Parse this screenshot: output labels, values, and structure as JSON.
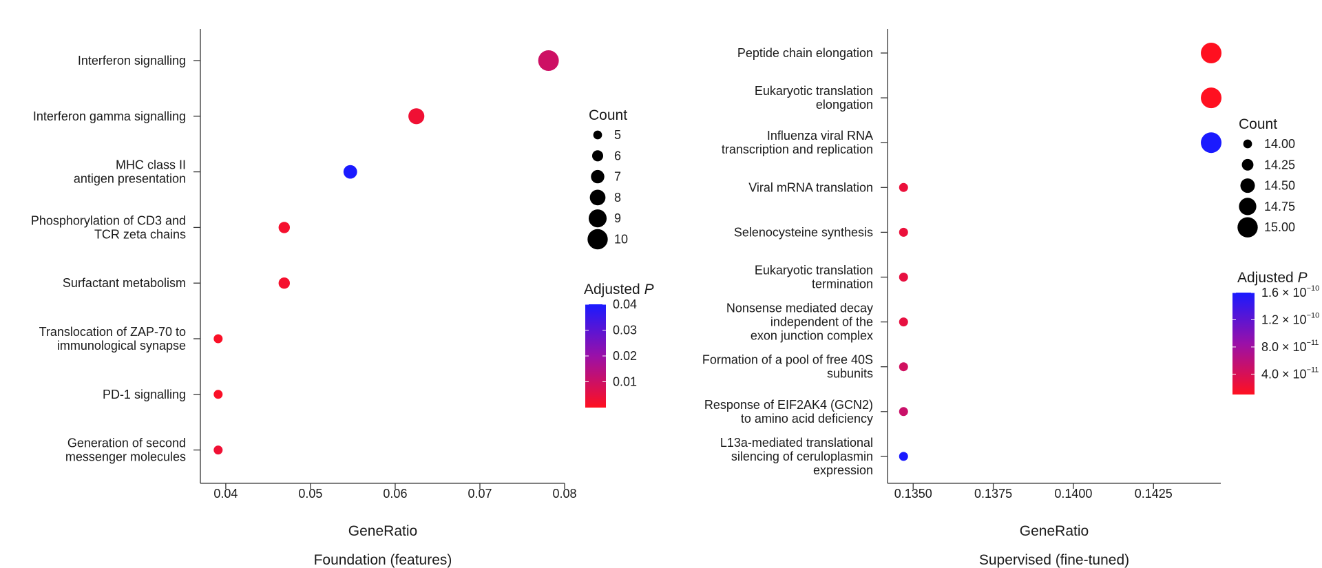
{
  "chart_data": [
    {
      "type": "scatter",
      "subtitle": "Foundation (features)",
      "xlabel": "GeneRatio",
      "xlim": [
        0.037,
        0.08
      ],
      "xticks": [
        "0.04",
        "0.05",
        "0.06",
        "0.07",
        "0.08"
      ],
      "xtick_values": [
        0.04,
        0.05,
        0.06,
        0.07,
        0.08
      ],
      "categories": [
        [
          "Interferon signalling"
        ],
        [
          "Interferon gamma signalling"
        ],
        [
          "MHC class II",
          "antigen presentation"
        ],
        [
          "Phosphorylation of CD3 and",
          "TCR zeta chains"
        ],
        [
          "Surfactant metabolism"
        ],
        [
          "Translocation of ZAP-70 to",
          "immunological synapse"
        ],
        [
          "PD-1 signalling"
        ],
        [
          "Generation of second",
          "messenger molecules"
        ]
      ],
      "points": [
        {
          "gene_ratio": 0.0781,
          "count": 10,
          "p_adj": 0.01
        },
        {
          "gene_ratio": 0.0625,
          "count": 8,
          "p_adj": 0.003
        },
        {
          "gene_ratio": 0.0547,
          "count": 7,
          "p_adj": 0.04
        },
        {
          "gene_ratio": 0.0469,
          "count": 6,
          "p_adj": 0.002
        },
        {
          "gene_ratio": 0.0469,
          "count": 6,
          "p_adj": 0.002
        },
        {
          "gene_ratio": 0.0391,
          "count": 5,
          "p_adj": 0.001
        },
        {
          "gene_ratio": 0.0391,
          "count": 5,
          "p_adj": 0.001
        },
        {
          "gene_ratio": 0.0391,
          "count": 5,
          "p_adj": 0.003
        }
      ],
      "size_legend": {
        "title": "Count",
        "labels": [
          "5",
          "6",
          "7",
          "8",
          "9",
          "10"
        ],
        "values": [
          5,
          6,
          7,
          8,
          9,
          10
        ]
      },
      "color_legend": {
        "title": "Adjusted ",
        "title_italic": "P",
        "range": [
          0.0,
          0.04
        ],
        "ticks": [
          {
            "value": 0.04,
            "mant": "0.04",
            "exp": ""
          },
          {
            "value": 0.03,
            "mant": "0.03",
            "exp": ""
          },
          {
            "value": 0.02,
            "mant": "0.02",
            "exp": ""
          },
          {
            "value": 0.01,
            "mant": "0.01",
            "exp": ""
          }
        ]
      }
    },
    {
      "type": "scatter",
      "subtitle": "Supervised (fine-tuned)",
      "xlabel": "GeneRatio",
      "xlim": [
        0.1342,
        0.1446
      ],
      "xticks": [
        "0.1350",
        "0.1375",
        "0.1400",
        "0.1425"
      ],
      "xtick_values": [
        0.135,
        0.1375,
        0.14,
        0.1425
      ],
      "categories": [
        [
          "Peptide chain elongation"
        ],
        [
          "Eukaryotic translation",
          "elongation"
        ],
        [
          "Influenza viral RNA",
          "transcription and replication"
        ],
        [
          "Viral mRNA translation"
        ],
        [
          "Selenocysteine synthesis"
        ],
        [
          "Eukaryotic translation",
          "termination"
        ],
        [
          "Nonsense mediated decay",
          "independent of the",
          "exon junction complex"
        ],
        [
          "Formation of a pool of free 40S",
          "subunits"
        ],
        [
          "Response of EIF2AK4 (GCN2)",
          "to amino acid deficiency"
        ],
        [
          "L13a-mediated translational",
          "silencing of ceruloplasmin",
          "expression"
        ]
      ],
      "points": [
        {
          "gene_ratio": 0.1443,
          "count": 15,
          "p_adj": 1e-11
        },
        {
          "gene_ratio": 0.1443,
          "count": 15,
          "p_adj": 1e-11
        },
        {
          "gene_ratio": 0.1443,
          "count": 15,
          "p_adj": 1.6e-10
        },
        {
          "gene_ratio": 0.1347,
          "count": 14,
          "p_adj": 2.5e-11
        },
        {
          "gene_ratio": 0.1347,
          "count": 14,
          "p_adj": 2.5e-11
        },
        {
          "gene_ratio": 0.1347,
          "count": 14,
          "p_adj": 2.8e-11
        },
        {
          "gene_ratio": 0.1347,
          "count": 14,
          "p_adj": 2.8e-11
        },
        {
          "gene_ratio": 0.1347,
          "count": 14,
          "p_adj": 4.5e-11
        },
        {
          "gene_ratio": 0.1347,
          "count": 14,
          "p_adj": 5e-11
        },
        {
          "gene_ratio": 0.1347,
          "count": 14,
          "p_adj": 1.6e-10
        }
      ],
      "size_legend": {
        "title": "Count",
        "labels": [
          "14.00",
          "14.25",
          "14.50",
          "14.75",
          "15.00"
        ],
        "values": [
          14.0,
          14.25,
          14.5,
          14.75,
          15.0
        ]
      },
      "color_legend": {
        "title": "Adjusted ",
        "title_italic": "P",
        "range": [
          1e-11,
          1.6e-10
        ],
        "ticks": [
          {
            "value": 1.6e-10,
            "mant": "1.6 × 10",
            "exp": "−10"
          },
          {
            "value": 1.2e-10,
            "mant": "1.2 × 10",
            "exp": "−10"
          },
          {
            "value": 8e-11,
            "mant": "8.0 × 10",
            "exp": "−11"
          },
          {
            "value": 4e-11,
            "mant": "4.0 × 10",
            "exp": "−11"
          }
        ]
      }
    }
  ]
}
